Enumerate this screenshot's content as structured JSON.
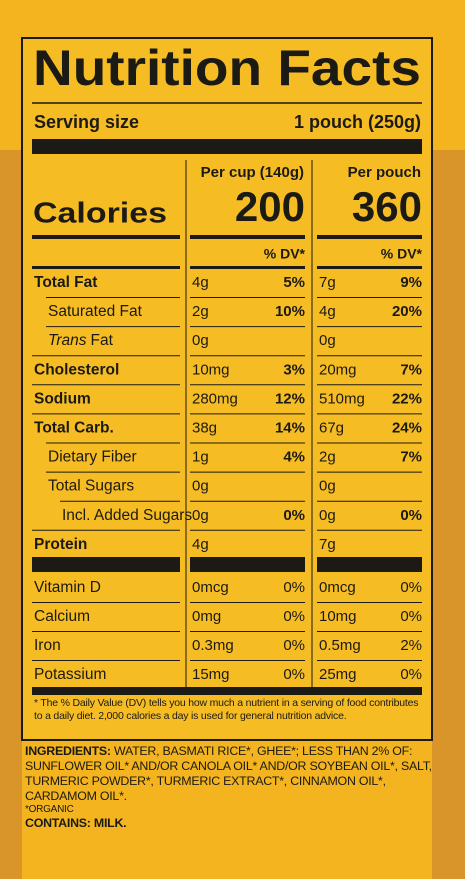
{
  "title": "Nutrition Facts",
  "serving": {
    "label": "Serving size",
    "value": "1 pouch (250g)"
  },
  "calories_label": "Calories",
  "columns": [
    {
      "header": "Per cup (140g)",
      "calories": "200",
      "dv_header": "% DV*"
    },
    {
      "header": "Per pouch",
      "calories": "360",
      "dv_header": "% DV*"
    }
  ],
  "rows": [
    {
      "name": "Total Fat",
      "level": 0,
      "cup": {
        "amount": "4g",
        "dv": "5%"
      },
      "pouch": {
        "amount": "7g",
        "dv": "9%"
      }
    },
    {
      "name": "Saturated Fat",
      "level": 1,
      "cup": {
        "amount": "2g",
        "dv": "10%"
      },
      "pouch": {
        "amount": "4g",
        "dv": "20%"
      }
    },
    {
      "name_italic": "Trans",
      "name": "Fat",
      "level": 1,
      "cup": {
        "amount": "0g"
      },
      "pouch": {
        "amount": "0g"
      }
    },
    {
      "name": "Cholesterol",
      "level": 0,
      "cup": {
        "amount": "10mg",
        "dv": "3%"
      },
      "pouch": {
        "amount": "20mg",
        "dv": "7%"
      }
    },
    {
      "name": "Sodium",
      "level": 0,
      "cup": {
        "amount": "280mg",
        "dv": "12%"
      },
      "pouch": {
        "amount": "510mg",
        "dv": "22%"
      }
    },
    {
      "name": "Total Carb.",
      "level": 0,
      "cup": {
        "amount": "38g",
        "dv": "14%"
      },
      "pouch": {
        "amount": "67g",
        "dv": "24%"
      }
    },
    {
      "name": "Dietary Fiber",
      "level": 1,
      "cup": {
        "amount": "1g",
        "dv": "4%"
      },
      "pouch": {
        "amount": "2g",
        "dv": "7%"
      }
    },
    {
      "name": "Total Sugars",
      "level": 1,
      "cup": {
        "amount": "0g"
      },
      "pouch": {
        "amount": "0g"
      }
    },
    {
      "name": "Incl. Added Sugars",
      "level": 2,
      "cup": {
        "amount": "0g",
        "dv": "0%"
      },
      "pouch": {
        "amount": "0g",
        "dv": "0%"
      }
    },
    {
      "name": "Protein",
      "level": 0,
      "cup": {
        "amount": "4g"
      },
      "pouch": {
        "amount": "7g"
      }
    }
  ],
  "vitamins": [
    {
      "name": "Vitamin D",
      "cup": {
        "amount": "0mcg",
        "dv": "0%"
      },
      "pouch": {
        "amount": "0mcg",
        "dv": "0%"
      }
    },
    {
      "name": "Calcium",
      "cup": {
        "amount": "0mg",
        "dv": "0%"
      },
      "pouch": {
        "amount": "10mg",
        "dv": "0%"
      }
    },
    {
      "name": "Iron",
      "cup": {
        "amount": "0.3mg",
        "dv": "0%"
      },
      "pouch": {
        "amount": "0.5mg",
        "dv": "2%"
      }
    },
    {
      "name": "Potassium",
      "cup": {
        "amount": "15mg",
        "dv": "0%"
      },
      "pouch": {
        "amount": "25mg",
        "dv": "0%"
      }
    }
  ],
  "footnote": "* The % Daily Value (DV) tells you how much a nutrient in a serving of food contributes to a daily diet. 2,000 calories a day is used for general nutrition advice.",
  "ingredients": {
    "label": "INGREDIENTS:",
    "text": "WATER, BASMATI RICE*, GHEE*; LESS THAN 2% OF: SUNFLOWER OIL* AND/OR CANOLA OIL* AND/OR SOYBEAN OIL*, SALT, TURMERIC POWDER*, TURMERIC EXTRACT*, CINNAMON OIL*, CARDAMOM OIL*."
  },
  "organic_note": "*ORGANIC",
  "contains": {
    "label": "CONTAINS:",
    "text": "MILK."
  }
}
